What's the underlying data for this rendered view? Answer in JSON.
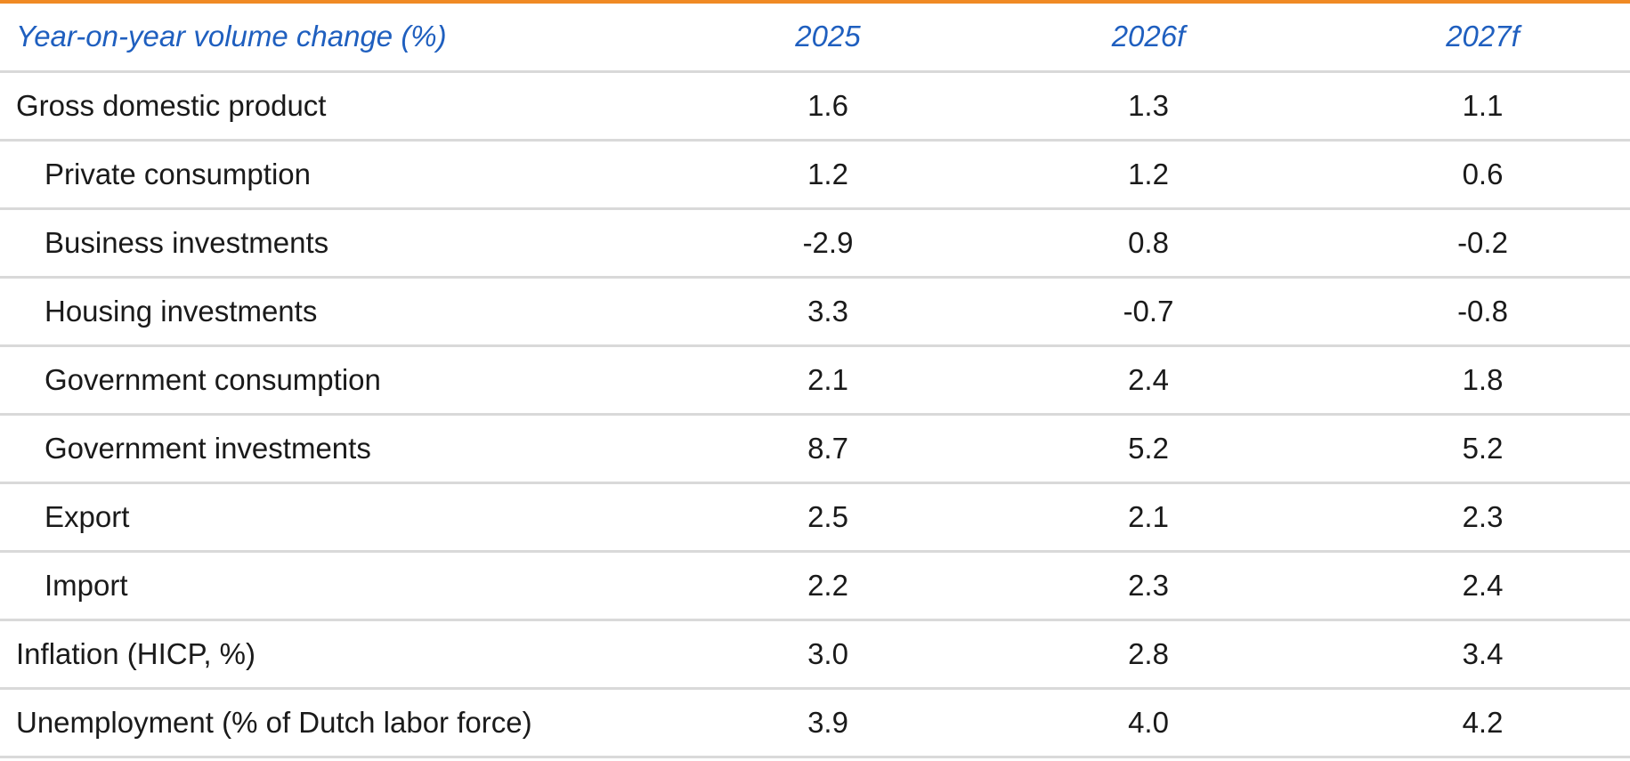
{
  "header": {
    "label": "Year-on-year volume change (%)",
    "years": [
      "2025",
      "2026f",
      "2027f"
    ]
  },
  "rows": [
    {
      "label": "Gross domestic product",
      "indent": false,
      "values": [
        "1.6",
        "1.3",
        "1.1"
      ]
    },
    {
      "label": "Private consumption",
      "indent": true,
      "values": [
        "1.2",
        "1.2",
        "0.6"
      ]
    },
    {
      "label": "Business investments",
      "indent": true,
      "values": [
        "-2.9",
        "0.8",
        "-0.2"
      ]
    },
    {
      "label": "Housing investments",
      "indent": true,
      "values": [
        "3.3",
        "-0.7",
        "-0.8"
      ]
    },
    {
      "label": "Government consumption",
      "indent": true,
      "values": [
        "2.1",
        "2.4",
        "1.8"
      ]
    },
    {
      "label": "Government investments",
      "indent": true,
      "values": [
        "8.7",
        "5.2",
        "5.2"
      ]
    },
    {
      "label": "Export",
      "indent": true,
      "values": [
        "2.5",
        "2.1",
        "2.3"
      ]
    },
    {
      "label": "Import",
      "indent": true,
      "values": [
        "2.2",
        "2.3",
        "2.4"
      ]
    },
    {
      "label": "Inflation (HICP, %)",
      "indent": false,
      "values": [
        "3.0",
        "2.8",
        "3.4"
      ]
    },
    {
      "label": "Unemployment (% of Dutch labor force)",
      "indent": false,
      "values": [
        "3.9",
        "4.0",
        "4.2"
      ]
    }
  ],
  "colors": {
    "accent_line": "#f08a24",
    "header_text": "#1f5fbf",
    "row_divider": "#d9d9d9"
  }
}
